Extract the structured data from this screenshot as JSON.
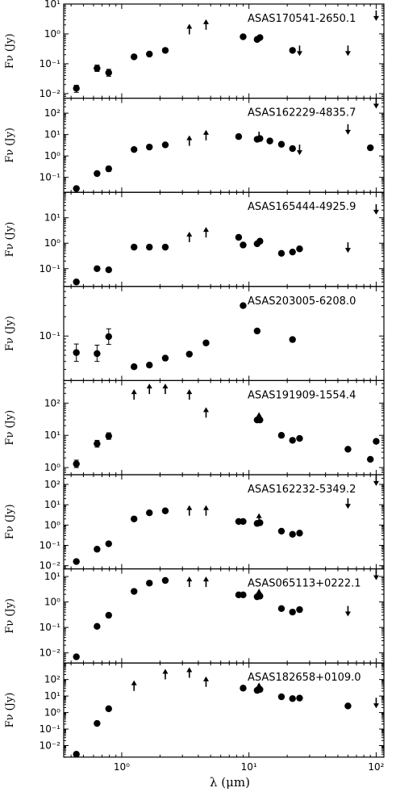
{
  "figure": {
    "xlabel": "λ (μm)",
    "ylabel": "Fν (Jy)",
    "xscale": "log",
    "yscale": "log",
    "xlim": [
      0.35,
      115
    ],
    "xticks": [
      {
        "value": 1,
        "label": "10⁰"
      },
      {
        "value": 10,
        "label": "10¹"
      },
      {
        "value": 100,
        "label": "10²"
      }
    ]
  },
  "chart_data": [
    {
      "type": "scatter",
      "label": "ASAS170541-2650.1",
      "ylim": [
        0.007,
        10
      ],
      "yticks": [
        {
          "value": 0.01,
          "label": "10⁻²"
        },
        {
          "value": 0.1,
          "label": "10⁻¹"
        },
        {
          "value": 1,
          "label": "10⁰"
        },
        {
          "value": 10,
          "label": "10¹"
        }
      ],
      "points": [
        {
          "x": 0.44,
          "y": 0.015,
          "err": [
            0.011,
            0.019
          ]
        },
        {
          "x": 0.64,
          "y": 0.07,
          "err": [
            0.055,
            0.09
          ]
        },
        {
          "x": 0.79,
          "y": 0.05,
          "err": [
            0.038,
            0.065
          ]
        },
        {
          "x": 1.25,
          "y": 0.17
        },
        {
          "x": 1.65,
          "y": 0.21
        },
        {
          "x": 2.2,
          "y": 0.28
        },
        {
          "x": 9.0,
          "y": 0.8
        },
        {
          "x": 11.6,
          "y": 0.65
        },
        {
          "x": 12.2,
          "y": 0.75
        },
        {
          "x": 22.0,
          "y": 0.28
        }
      ],
      "upper_limits": [
        {
          "x": 25,
          "y": 0.28
        },
        {
          "x": 60,
          "y": 0.28
        },
        {
          "x": 100,
          "y": 4.2
        }
      ],
      "lower_limits": [
        {
          "x": 3.4,
          "y": 1.4
        },
        {
          "x": 4.6,
          "y": 2.0
        }
      ]
    },
    {
      "type": "scatter",
      "label": "ASAS162229-4835.7",
      "ylim": [
        0.02,
        500
      ],
      "yticks": [
        {
          "value": 0.1,
          "label": "10⁻¹"
        },
        {
          "value": 1,
          "label": "10⁰"
        },
        {
          "value": 10,
          "label": "10¹"
        },
        {
          "value": 100,
          "label": "10²"
        }
      ],
      "points": [
        {
          "x": 0.44,
          "y": 0.03
        },
        {
          "x": 0.64,
          "y": 0.15
        },
        {
          "x": 0.79,
          "y": 0.25,
          "err": [
            0.19,
            0.32
          ]
        },
        {
          "x": 1.25,
          "y": 2.0
        },
        {
          "x": 1.65,
          "y": 2.6
        },
        {
          "x": 2.2,
          "y": 3.3
        },
        {
          "x": 8.3,
          "y": 8.0
        },
        {
          "x": 11.6,
          "y": 6.0
        },
        {
          "x": 12.2,
          "y": 6.5
        },
        {
          "x": 14.6,
          "y": 5.0
        },
        {
          "x": 18.0,
          "y": 3.5
        },
        {
          "x": 22.0,
          "y": 2.2
        },
        {
          "x": 90.0,
          "y": 2.4
        }
      ],
      "upper_limits": [
        {
          "x": 12.0,
          "y": 8.0
        },
        {
          "x": 25,
          "y": 2.0
        },
        {
          "x": 60,
          "y": 18
        },
        {
          "x": 100,
          "y": 300
        }
      ],
      "lower_limits": [
        {
          "x": 3.4,
          "y": 5.0
        },
        {
          "x": 4.6,
          "y": 9.0
        }
      ]
    },
    {
      "type": "scatter",
      "label": "ASAS165444-4925.9",
      "ylim": [
        0.02,
        100
      ],
      "yticks": [
        {
          "value": 0.1,
          "label": "10⁻¹"
        },
        {
          "value": 1,
          "label": "10⁰"
        },
        {
          "value": 10,
          "label": "10¹"
        }
      ],
      "points": [
        {
          "x": 0.44,
          "y": 0.03
        },
        {
          "x": 0.64,
          "y": 0.1
        },
        {
          "x": 0.79,
          "y": 0.09
        },
        {
          "x": 1.25,
          "y": 0.7
        },
        {
          "x": 1.65,
          "y": 0.7
        },
        {
          "x": 2.2,
          "y": 0.7
        },
        {
          "x": 8.3,
          "y": 1.7
        },
        {
          "x": 9.0,
          "y": 0.85
        },
        {
          "x": 11.6,
          "y": 0.95
        },
        {
          "x": 12.2,
          "y": 1.2
        },
        {
          "x": 18.0,
          "y": 0.4
        },
        {
          "x": 22.0,
          "y": 0.45
        },
        {
          "x": 25.0,
          "y": 0.6
        }
      ],
      "upper_limits": [
        {
          "x": 60,
          "y": 0.7
        },
        {
          "x": 100,
          "y": 22
        }
      ],
      "lower_limits": [
        {
          "x": 3.4,
          "y": 1.7
        },
        {
          "x": 4.6,
          "y": 2.6
        }
      ]
    },
    {
      "type": "scatter",
      "label": "ASAS203005-6208.0",
      "ylim": [
        0.02,
        0.6
      ],
      "yticks": [
        {
          "value": 0.1,
          "label": "10⁻¹"
        }
      ],
      "points": [
        {
          "x": 0.44,
          "y": 0.055,
          "err": [
            0.04,
            0.075
          ]
        },
        {
          "x": 0.64,
          "y": 0.053,
          "err": [
            0.04,
            0.072
          ]
        },
        {
          "x": 0.79,
          "y": 0.098,
          "err": [
            0.074,
            0.13
          ]
        },
        {
          "x": 1.25,
          "y": 0.033
        },
        {
          "x": 1.65,
          "y": 0.035
        },
        {
          "x": 2.2,
          "y": 0.045
        },
        {
          "x": 3.4,
          "y": 0.052
        },
        {
          "x": 4.6,
          "y": 0.078
        },
        {
          "x": 9.0,
          "y": 0.3
        },
        {
          "x": 11.6,
          "y": 0.12
        },
        {
          "x": 22.0,
          "y": 0.088
        }
      ],
      "upper_limits": [],
      "lower_limits": []
    },
    {
      "type": "scatter",
      "label": "ASAS191909-1554.4",
      "ylim": [
        0.6,
        500
      ],
      "yticks": [
        {
          "value": 1,
          "label": "10⁰"
        },
        {
          "value": 10,
          "label": "10¹"
        },
        {
          "value": 100,
          "label": "10²"
        }
      ],
      "points": [
        {
          "x": 0.44,
          "y": 1.3,
          "err": [
            1.0,
            1.7
          ]
        },
        {
          "x": 0.64,
          "y": 5.5,
          "err": [
            4.3,
            7.0
          ]
        },
        {
          "x": 0.79,
          "y": 9.5,
          "err": [
            7.5,
            12
          ]
        },
        {
          "x": 11.6,
          "y": 30
        },
        {
          "x": 12.2,
          "y": 30
        },
        {
          "x": 18.0,
          "y": 10
        },
        {
          "x": 22.0,
          "y": 7.0
        },
        {
          "x": 25.0,
          "y": 8.0
        },
        {
          "x": 60.0,
          "y": 3.7
        },
        {
          "x": 90.0,
          "y": 1.8
        },
        {
          "x": 100.0,
          "y": 6.5
        }
      ],
      "upper_limits": [],
      "lower_limits": [
        {
          "x": 1.25,
          "y": 180
        },
        {
          "x": 1.65,
          "y": 270
        },
        {
          "x": 2.2,
          "y": 270
        },
        {
          "x": 3.4,
          "y": 180
        },
        {
          "x": 4.6,
          "y": 50
        },
        {
          "x": 12.0,
          "y": 35
        }
      ]
    },
    {
      "type": "scatter",
      "label": "ASAS162232-5349.2",
      "ylim": [
        0.007,
        300
      ],
      "yticks": [
        {
          "value": 0.01,
          "label": "10⁻²"
        },
        {
          "value": 0.1,
          "label": "10⁻¹"
        },
        {
          "value": 1,
          "label": "10⁰"
        },
        {
          "value": 10,
          "label": "10¹"
        },
        {
          "value": 100,
          "label": "10²"
        }
      ],
      "points": [
        {
          "x": 0.44,
          "y": 0.016
        },
        {
          "x": 0.64,
          "y": 0.065
        },
        {
          "x": 0.79,
          "y": 0.12
        },
        {
          "x": 1.25,
          "y": 2.0
        },
        {
          "x": 1.65,
          "y": 4.0
        },
        {
          "x": 2.2,
          "y": 5.0
        },
        {
          "x": 8.3,
          "y": 1.5
        },
        {
          "x": 9.0,
          "y": 1.5
        },
        {
          "x": 11.6,
          "y": 1.2
        },
        {
          "x": 12.2,
          "y": 1.3
        },
        {
          "x": 18.0,
          "y": 0.5
        },
        {
          "x": 22.0,
          "y": 0.35
        },
        {
          "x": 25.0,
          "y": 0.4
        }
      ],
      "upper_limits": [
        {
          "x": 60,
          "y": 12
        },
        {
          "x": 100,
          "y": 160
        }
      ],
      "lower_limits": [
        {
          "x": 3.4,
          "y": 5.0
        },
        {
          "x": 4.6,
          "y": 5.0
        },
        {
          "x": 12.0,
          "y": 2.0
        }
      ]
    },
    {
      "type": "scatter",
      "label": "ASAS065113+0222.1",
      "ylim": [
        0.004,
        20
      ],
      "yticks": [
        {
          "value": 0.01,
          "label": "10⁻²"
        },
        {
          "value": 0.1,
          "label": "10⁻¹"
        },
        {
          "value": 1,
          "label": "10⁰"
        },
        {
          "value": 10,
          "label": "10¹"
        }
      ],
      "points": [
        {
          "x": 0.44,
          "y": 0.007
        },
        {
          "x": 0.64,
          "y": 0.11
        },
        {
          "x": 0.79,
          "y": 0.3
        },
        {
          "x": 1.25,
          "y": 2.6
        },
        {
          "x": 1.65,
          "y": 5.5
        },
        {
          "x": 2.2,
          "y": 7.0
        },
        {
          "x": 8.3,
          "y": 1.9
        },
        {
          "x": 9.0,
          "y": 1.9
        },
        {
          "x": 11.6,
          "y": 1.6
        },
        {
          "x": 12.2,
          "y": 1.7
        },
        {
          "x": 18.0,
          "y": 0.55
        },
        {
          "x": 22.0,
          "y": 0.4
        },
        {
          "x": 25.0,
          "y": 0.5
        }
      ],
      "upper_limits": [
        {
          "x": 60,
          "y": 0.45
        },
        {
          "x": 100,
          "y": 12
        }
      ],
      "lower_limits": [
        {
          "x": 3.4,
          "y": 6.0
        },
        {
          "x": 4.6,
          "y": 6.0
        },
        {
          "x": 12.0,
          "y": 2.0
        }
      ]
    },
    {
      "type": "scatter",
      "label": "ASAS182658+0109.0",
      "ylim": [
        0.002,
        1000
      ],
      "yticks": [
        {
          "value": 0.01,
          "label": "10⁻²"
        },
        {
          "value": 0.1,
          "label": "10⁻¹"
        },
        {
          "value": 1,
          "label": "10⁰"
        },
        {
          "value": 10,
          "label": "10¹"
        },
        {
          "value": 100,
          "label": "10²"
        }
      ],
      "points": [
        {
          "x": 0.44,
          "y": 0.003
        },
        {
          "x": 0.64,
          "y": 0.22
        },
        {
          "x": 0.79,
          "y": 1.7
        },
        {
          "x": 9.0,
          "y": 30
        },
        {
          "x": 11.6,
          "y": 22
        },
        {
          "x": 12.2,
          "y": 25
        },
        {
          "x": 18.0,
          "y": 9.0
        },
        {
          "x": 22.0,
          "y": 7.0
        },
        {
          "x": 25.0,
          "y": 7.5
        },
        {
          "x": 60.0,
          "y": 2.5
        }
      ],
      "upper_limits": [
        {
          "x": 100,
          "y": 4.0
        }
      ],
      "lower_limits": [
        {
          "x": 1.25,
          "y": 40
        },
        {
          "x": 2.2,
          "y": 200
        },
        {
          "x": 3.4,
          "y": 250
        },
        {
          "x": 4.6,
          "y": 70
        },
        {
          "x": 12.0,
          "y": 30
        }
      ]
    }
  ]
}
